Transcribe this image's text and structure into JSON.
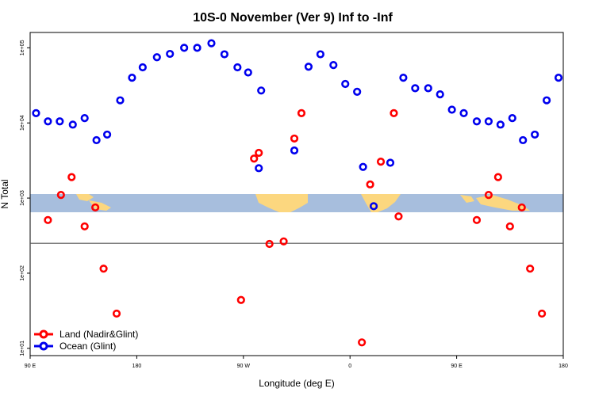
{
  "chart_data": {
    "type": "scatter",
    "title": "10S-0 November (Ver 9)   Inf to -Inf",
    "xlabel": "Longitude (deg E)",
    "ylabel": "N Total",
    "x_tick_labels": [
      "90 E",
      "180",
      "90 W",
      "0",
      "90 E",
      "180"
    ],
    "x_ticks": [
      90,
      180,
      270,
      360,
      450,
      540
    ],
    "xlim": [
      90,
      540
    ],
    "y_tick_labels": [
      "1e+01",
      "1e+02",
      "1e+03",
      "1e+04",
      "1e+05"
    ],
    "y_ticks": [
      10,
      100,
      1000,
      10000,
      100000
    ],
    "ylim": [
      8,
      160000
    ],
    "y_scale": "log",
    "reference_line_y": 250,
    "grid": false,
    "legend_position": "bottom-left",
    "series": [
      {
        "name": "Land (Nadir&Glint)",
        "color": "#ff0000",
        "points": [
          [
            105,
            510
          ],
          [
            116,
            1100
          ],
          [
            125,
            1900
          ],
          [
            136,
            420
          ],
          [
            145,
            750
          ],
          [
            152,
            115
          ],
          [
            163,
            29
          ],
          [
            268,
            44
          ],
          [
            279,
            3350
          ],
          [
            283,
            4000
          ],
          [
            292,
            245
          ],
          [
            304,
            265
          ],
          [
            313,
            6200
          ],
          [
            319,
            13500
          ],
          [
            370,
            12
          ],
          [
            377,
            1520
          ],
          [
            386,
            3050
          ],
          [
            397,
            13500
          ],
          [
            401,
            570
          ],
          [
            467,
            510
          ],
          [
            477,
            1100
          ],
          [
            485,
            1900
          ],
          [
            495,
            420
          ],
          [
            505,
            750
          ],
          [
            512,
            115
          ],
          [
            522,
            29
          ]
        ]
      },
      {
        "name": "Ocean (Glint)",
        "color": "#0000ee",
        "points": [
          [
            95,
            13500
          ],
          [
            105,
            10500
          ],
          [
            115,
            10500
          ],
          [
            126,
            9500
          ],
          [
            136,
            11600
          ],
          [
            146,
            5900
          ],
          [
            155,
            7000
          ],
          [
            166,
            20000
          ],
          [
            176,
            40000
          ],
          [
            185,
            55000
          ],
          [
            197,
            75000
          ],
          [
            208,
            83000
          ],
          [
            220,
            100000
          ],
          [
            231,
            100000
          ],
          [
            243,
            115000
          ],
          [
            254,
            82000
          ],
          [
            265,
            55000
          ],
          [
            274,
            47000
          ],
          [
            285,
            27000
          ],
          [
            283,
            2500
          ],
          [
            313,
            4300
          ],
          [
            325,
            56000
          ],
          [
            335,
            82000
          ],
          [
            346,
            59000
          ],
          [
            356,
            33000
          ],
          [
            366,
            26000
          ],
          [
            371,
            2600
          ],
          [
            380,
            780
          ],
          [
            394,
            2950
          ],
          [
            405,
            40000
          ],
          [
            415,
            29000
          ],
          [
            426,
            29000
          ],
          [
            436,
            24000
          ],
          [
            446,
            15000
          ],
          [
            456,
            13500
          ],
          [
            467,
            10500
          ],
          [
            477,
            10500
          ],
          [
            487,
            9500
          ],
          [
            497,
            11600
          ],
          [
            506,
            5900
          ],
          [
            516,
            7000
          ],
          [
            526,
            20000
          ],
          [
            536,
            40000
          ]
        ]
      }
    ]
  }
}
